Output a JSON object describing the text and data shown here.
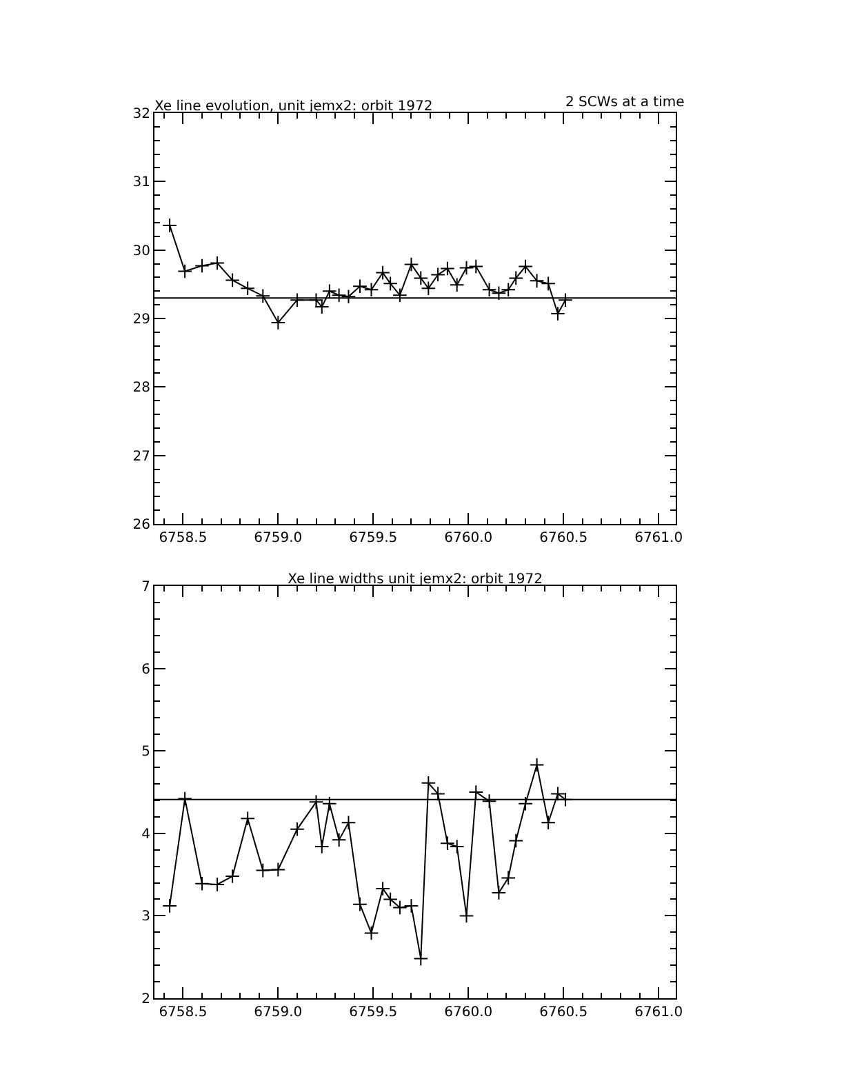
{
  "chart_data": [
    {
      "type": "line",
      "title": "Xe line evolution, unit jemx2: orbit 1972",
      "subtitle": "2 SCWs at a time",
      "x": [
        6758.43,
        6758.51,
        6758.6,
        6758.68,
        6758.76,
        6758.84,
        6758.92,
        6759.0,
        6759.1,
        6759.2,
        6759.23,
        6759.27,
        6759.32,
        6759.37,
        6759.43,
        6759.49,
        6759.55,
        6759.59,
        6759.64,
        6759.7,
        6759.75,
        6759.79,
        6759.84,
        6759.89,
        6759.94,
        6759.99,
        6760.04,
        6760.11,
        6760.16,
        6760.21,
        6760.25,
        6760.3,
        6760.36,
        6760.42,
        6760.47,
        6760.51
      ],
      "series": [
        {
          "color": "#000000",
          "values": [
            30.36,
            29.69,
            29.77,
            29.81,
            29.56,
            29.44,
            29.33,
            28.94,
            29.27,
            29.27,
            29.17,
            29.4,
            29.34,
            29.32,
            29.47,
            29.42,
            29.67,
            29.51,
            29.34,
            29.79,
            29.59,
            29.44,
            29.64,
            29.73,
            29.49,
            29.74,
            29.76,
            29.42,
            29.37,
            29.42,
            29.59,
            29.76,
            29.55,
            29.51,
            29.07,
            29.27
          ]
        }
      ],
      "marker": "cross",
      "line_style": "solid",
      "xlim": [
        6758.35,
        6761.09
      ],
      "xticks": [
        {
          "value": 6758.5,
          "label": "6758.5"
        },
        {
          "value": 6759,
          "label": "6759.0"
        },
        {
          "value": 6759.5,
          "label": "6759.5"
        },
        {
          "value": 6760,
          "label": "6760.0"
        },
        {
          "value": 6760.5,
          "label": "6760.5"
        },
        {
          "value": 6761,
          "label": "6761.0"
        }
      ],
      "ylim": [
        26,
        32
      ],
      "yticks": [
        26,
        27,
        28,
        29,
        30,
        31,
        32
      ],
      "ref_lines": [
        {
          "axis": "y",
          "value": 29.3,
          "color": "#000000"
        }
      ]
    },
    {
      "type": "line",
      "title": "Xe line widths unit jemx2: orbit 1972",
      "x": [
        6758.43,
        6758.51,
        6758.6,
        6758.68,
        6758.76,
        6758.84,
        6758.92,
        6759.0,
        6759.1,
        6759.2,
        6759.23,
        6759.27,
        6759.32,
        6759.37,
        6759.43,
        6759.49,
        6759.55,
        6759.59,
        6759.64,
        6759.7,
        6759.75,
        6759.79,
        6759.84,
        6759.89,
        6759.94,
        6759.99,
        6760.04,
        6760.11,
        6760.16,
        6760.21,
        6760.25,
        6760.3,
        6760.36,
        6760.42,
        6760.47,
        6760.51
      ],
      "series": [
        {
          "color": "#000000",
          "values": [
            3.12,
            4.42,
            3.39,
            3.38,
            3.48,
            4.18,
            3.55,
            3.56,
            4.05,
            4.38,
            3.84,
            4.36,
            3.92,
            4.13,
            3.14,
            2.79,
            3.33,
            3.2,
            3.1,
            3.12,
            2.48,
            4.61,
            4.48,
            3.88,
            3.84,
            3.0,
            4.5,
            4.39,
            3.28,
            3.46,
            3.91,
            4.36,
            4.83,
            4.13,
            4.48,
            4.41
          ]
        }
      ],
      "marker": "cross",
      "line_style": "solid",
      "xlim": [
        6758.35,
        6761.09
      ],
      "xticks": [
        {
          "value": 6758.5,
          "label": "6758.5"
        },
        {
          "value": 6759,
          "label": "6759.0"
        },
        {
          "value": 6759.5,
          "label": "6759.5"
        },
        {
          "value": 6760,
          "label": "6760.0"
        },
        {
          "value": 6760.5,
          "label": "6760.5"
        },
        {
          "value": 6761,
          "label": "6761.0"
        }
      ],
      "ylim": [
        2,
        7
      ],
      "yticks": [
        2,
        3,
        4,
        5,
        6,
        7
      ],
      "ref_lines": [
        {
          "axis": "y",
          "value": 4.41,
          "color": "#000000"
        }
      ]
    }
  ]
}
